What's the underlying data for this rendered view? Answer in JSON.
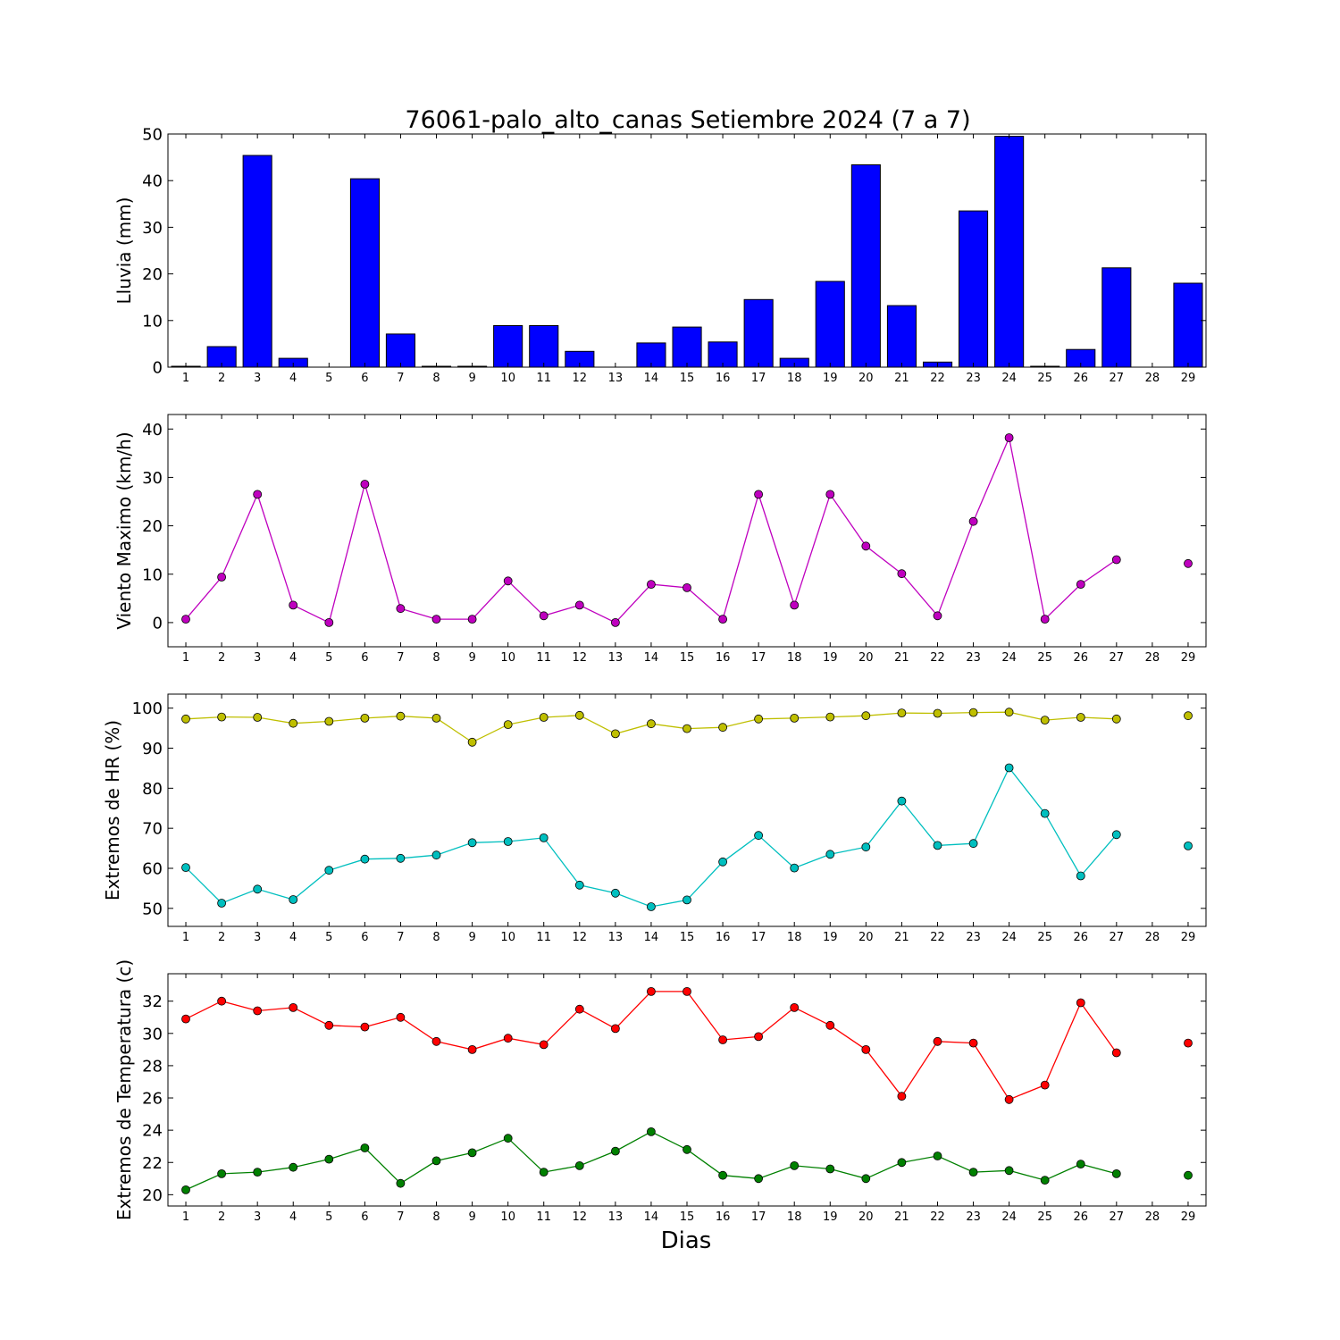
{
  "figure": {
    "title": "76061-palo_alto_canas Setiembre 2024  (7 a 7)",
    "xlabel": "Dias"
  },
  "chart_data": [
    {
      "type": "bar",
      "ylabel": "Lluvia (mm)",
      "categories": [
        "1",
        "2",
        "3",
        "4",
        "5",
        "6",
        "7",
        "8",
        "9",
        "10",
        "11",
        "12",
        "13",
        "14",
        "15",
        "16",
        "17",
        "18",
        "19",
        "20",
        "21",
        "22",
        "23",
        "24",
        "25",
        "26",
        "27",
        "28",
        "29"
      ],
      "values": [
        0.2,
        4.4,
        45.4,
        1.9,
        0,
        40.4,
        7.1,
        0.2,
        0.2,
        8.9,
        8.9,
        3.4,
        0,
        5.2,
        8.6,
        5.4,
        14.5,
        1.9,
        18.4,
        43.4,
        13.2,
        1.1,
        33.5,
        49.5,
        0.2,
        3.8,
        21.3,
        null,
        18.0
      ],
      "ylim": [
        0,
        50
      ],
      "yticks": [
        0,
        10,
        20,
        30,
        40,
        50
      ],
      "color": "#0000ff"
    },
    {
      "type": "line",
      "ylabel": "Viento Maximo (km/h)",
      "x": [
        1,
        2,
        3,
        4,
        5,
        6,
        7,
        8,
        9,
        10,
        11,
        12,
        13,
        14,
        15,
        16,
        17,
        18,
        19,
        20,
        21,
        22,
        23,
        24,
        25,
        26,
        27,
        28,
        29
      ],
      "series": [
        {
          "color": "#bf00bf",
          "values": [
            0.7,
            9.4,
            26.5,
            3.6,
            0,
            28.6,
            2.9,
            0.7,
            0.7,
            8.6,
            1.4,
            3.6,
            0,
            7.9,
            7.2,
            0.7,
            26.5,
            3.6,
            26.5,
            15.8,
            10.1,
            1.4,
            20.9,
            38.2,
            0.7,
            7.9,
            13.0,
            null,
            12.2
          ]
        }
      ],
      "ylim": [
        -5,
        43
      ],
      "yticks": [
        0,
        10,
        20,
        30,
        40
      ]
    },
    {
      "type": "line",
      "ylabel": "Extremos de HR (%)",
      "x": [
        1,
        2,
        3,
        4,
        5,
        6,
        7,
        8,
        9,
        10,
        11,
        12,
        13,
        14,
        15,
        16,
        17,
        18,
        19,
        20,
        21,
        22,
        23,
        24,
        25,
        26,
        27,
        28,
        29
      ],
      "series": [
        {
          "color": "#bfbf00",
          "values": [
            97.3,
            97.8,
            97.7,
            96.2,
            96.7,
            97.5,
            98.0,
            97.5,
            91.5,
            95.9,
            97.7,
            98.2,
            93.6,
            96.1,
            94.9,
            95.2,
            97.3,
            97.5,
            97.8,
            98.1,
            98.8,
            98.7,
            98.9,
            99.0,
            97.0,
            97.7,
            97.3,
            null,
            98.1
          ]
        },
        {
          "color": "#00bfbf",
          "values": [
            60.2,
            51.3,
            54.8,
            52.2,
            59.5,
            62.3,
            62.5,
            63.3,
            66.4,
            66.7,
            67.6,
            55.8,
            53.8,
            50.4,
            52.1,
            61.6,
            68.2,
            60.1,
            63.5,
            65.3,
            76.8,
            65.7,
            66.2,
            85.1,
            73.7,
            58.1,
            68.4,
            null,
            65.6
          ]
        }
      ],
      "ylim": [
        45.5,
        103.5
      ],
      "yticks": [
        50,
        60,
        70,
        80,
        90,
        100
      ]
    },
    {
      "type": "line",
      "ylabel": "Extremos de Temperatura (c)",
      "x": [
        1,
        2,
        3,
        4,
        5,
        6,
        7,
        8,
        9,
        10,
        11,
        12,
        13,
        14,
        15,
        16,
        17,
        18,
        19,
        20,
        21,
        22,
        23,
        24,
        25,
        26,
        27,
        28,
        29
      ],
      "series": [
        {
          "color": "#ff0000",
          "values": [
            30.9,
            32.0,
            31.4,
            31.6,
            30.5,
            30.4,
            31.0,
            29.5,
            29.0,
            29.7,
            29.3,
            31.5,
            30.3,
            32.6,
            32.6,
            29.6,
            29.8,
            31.6,
            30.5,
            29.0,
            26.1,
            29.5,
            29.4,
            25.9,
            26.8,
            31.9,
            28.8,
            null,
            29.4
          ]
        },
        {
          "color": "#008000",
          "values": [
            20.3,
            21.3,
            21.4,
            21.7,
            22.2,
            22.9,
            20.7,
            22.1,
            22.6,
            23.5,
            21.4,
            21.8,
            22.7,
            23.9,
            22.8,
            21.2,
            21.0,
            21.8,
            21.6,
            21.0,
            22.0,
            22.4,
            21.4,
            21.5,
            20.9,
            21.9,
            21.3,
            null,
            21.2
          ]
        }
      ],
      "ylim": [
        19.3,
        33.7
      ],
      "yticks": [
        20,
        22,
        24,
        26,
        28,
        30,
        32
      ]
    }
  ]
}
